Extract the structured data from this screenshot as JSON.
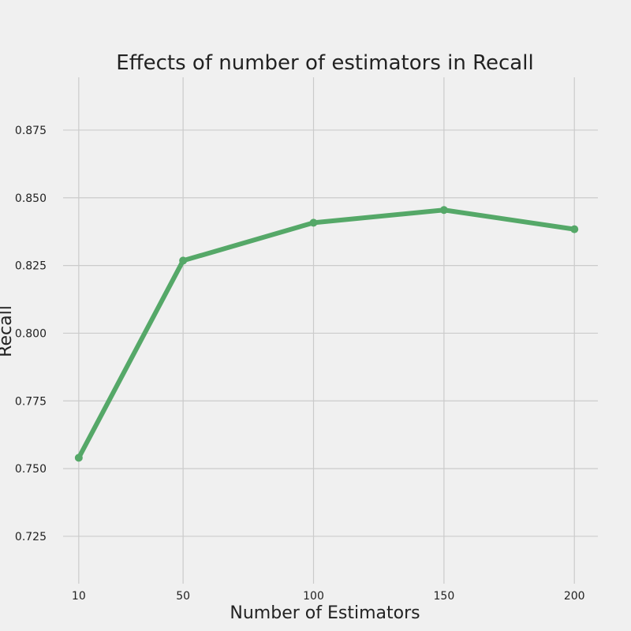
{
  "chart_data": {
    "type": "line",
    "title": "Effects of number of estimators in Recall",
    "xlabel": "Number of Estimators",
    "ylabel": "Recall",
    "x": [
      10,
      50,
      100,
      150,
      200
    ],
    "x_tick_labels": [
      "10",
      "50",
      "100",
      "150",
      "200"
    ],
    "y_ticks": [
      0.725,
      0.75,
      0.775,
      0.8,
      0.825,
      0.85,
      0.875
    ],
    "y_tick_labels": [
      "0.725",
      "0.750",
      "0.775",
      "0.800",
      "0.825",
      "0.850",
      "0.875"
    ],
    "xlim": [
      4,
      209
    ],
    "ylim": [
      0.7075,
      0.8945
    ],
    "grid": true,
    "series": [
      {
        "values": [
          0.754,
          0.8268,
          0.8408,
          0.8455,
          0.8384
        ],
        "color": "#55a868",
        "marker": "circle"
      }
    ]
  }
}
